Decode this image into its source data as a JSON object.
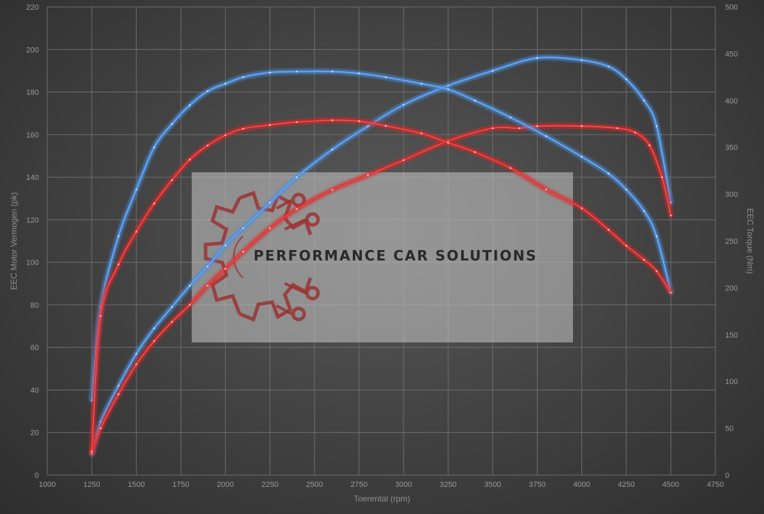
{
  "chart_data": {
    "type": "line",
    "xlabel": "Toerental (rpm)",
    "ylabel": "EEC Motor Vermogen (pk)",
    "y2label": "EEC Torque (Nm)",
    "xlim": [
      1000,
      4750
    ],
    "ylim": [
      0,
      220
    ],
    "y2lim": [
      0,
      500
    ],
    "x_ticks": [
      1000,
      1250,
      1500,
      1750,
      2000,
      2250,
      2500,
      2750,
      3000,
      3250,
      3500,
      3750,
      4000,
      4250,
      4500,
      4750
    ],
    "y_ticks": [
      0,
      20,
      40,
      60,
      80,
      100,
      120,
      140,
      160,
      180,
      200,
      220
    ],
    "y2_ticks": [
      0,
      50,
      100,
      150,
      200,
      250,
      300,
      350,
      400,
      450,
      500
    ],
    "grid": true,
    "series": [
      {
        "role": "tuned-power",
        "axis": "left",
        "color": "#4a8fe0",
        "x": [
          1250,
          1300,
          1400,
          1500,
          1600,
          1700,
          1800,
          1900,
          2000,
          2100,
          2250,
          2400,
          2600,
          2800,
          3000,
          3250,
          3500,
          3750,
          4000,
          4150,
          4250,
          4350,
          4420,
          4500
        ],
        "y": [
          10,
          25,
          42,
          57,
          69,
          79,
          89,
          98,
          108,
          116,
          128,
          140,
          153,
          164,
          174,
          183,
          190,
          196,
          195,
          192,
          186,
          176,
          164,
          128
        ]
      },
      {
        "role": "stock-power",
        "axis": "left",
        "color": "#e02828",
        "x": [
          1250,
          1300,
          1400,
          1500,
          1600,
          1700,
          1800,
          1900,
          2000,
          2100,
          2250,
          2400,
          2600,
          2800,
          3000,
          3250,
          3500,
          3650,
          3750,
          4000,
          4200,
          4300,
          4380,
          4450,
          4500
        ],
        "y": [
          10,
          22,
          38,
          52,
          63,
          72,
          80,
          89,
          97,
          105,
          116,
          125,
          134,
          141,
          148,
          157,
          163,
          163,
          164,
          164,
          163,
          161,
          155,
          140,
          122
        ]
      },
      {
        "role": "tuned-torque",
        "axis": "right",
        "color": "#4a8fe0",
        "x": [
          1250,
          1300,
          1400,
          1500,
          1600,
          1700,
          1800,
          1900,
          2000,
          2100,
          2250,
          2400,
          2600,
          2750,
          2900,
          3100,
          3250,
          3400,
          3600,
          3800,
          4000,
          4150,
          4250,
          4350,
          4420,
          4500
        ],
        "y": [
          80,
          180,
          255,
          305,
          350,
          375,
          395,
          410,
          418,
          425,
          430,
          431,
          431,
          429,
          425,
          418,
          412,
          400,
          382,
          362,
          340,
          322,
          305,
          282,
          255,
          195
        ]
      },
      {
        "role": "stock-torque",
        "axis": "right",
        "color": "#e02828",
        "x": [
          1250,
          1300,
          1400,
          1500,
          1600,
          1700,
          1800,
          1900,
          2000,
          2100,
          2250,
          2400,
          2600,
          2750,
          2900,
          3100,
          3250,
          3400,
          3600,
          3800,
          4000,
          4150,
          4250,
          4350,
          4420,
          4500
        ],
        "y": [
          25,
          170,
          225,
          260,
          290,
          315,
          337,
          352,
          363,
          370,
          374,
          377,
          379,
          378,
          373,
          365,
          355,
          345,
          328,
          305,
          285,
          262,
          245,
          230,
          218,
          195
        ]
      }
    ]
  },
  "watermark": {
    "text": "PERFORMANCE CAR SOLUTIONS"
  }
}
